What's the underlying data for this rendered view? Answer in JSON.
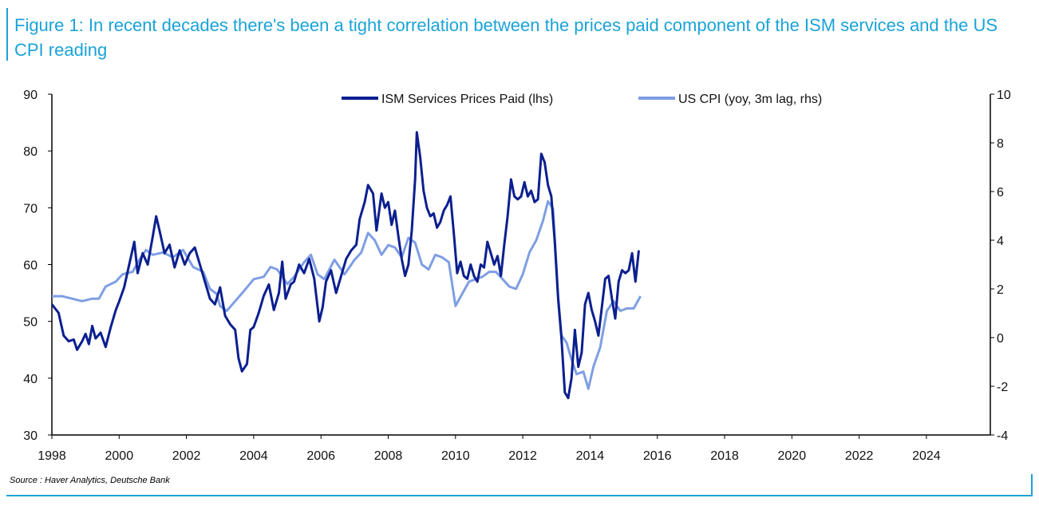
{
  "title": "Figure 1: In recent decades there's been a tight correlation between the prices paid component of the ISM services and the US CPI reading",
  "source": "Source : Haver Analytics, Deutsche Bank",
  "colors": {
    "title": "#1aa3d8",
    "ism": "#0c1f8f",
    "cpi": "#7f9ee3"
  },
  "chart_data": {
    "type": "line",
    "xlim": [
      1998,
      2025.9
    ],
    "x_ticks": [
      1998,
      2000,
      2002,
      2004,
      2006,
      2008,
      2010,
      2012,
      2014,
      2016,
      2018,
      2020,
      2022,
      2024
    ],
    "ylim_left": [
      30,
      90
    ],
    "y_ticks_left": [
      30,
      40,
      50,
      60,
      70,
      80,
      90
    ],
    "ylim_right": [
      -4,
      10
    ],
    "y_ticks_right": [
      -4,
      -2,
      0,
      2,
      4,
      6,
      8,
      10
    ],
    "legend_position": "top-center",
    "series": [
      {
        "name": "ISM Services Prices Paid (lhs)",
        "axis": "left",
        "points": [
          [
            1998.0,
            53.0
          ],
          [
            1998.2,
            51.5
          ],
          [
            1998.35,
            47.5
          ],
          [
            1998.5,
            46.5
          ],
          [
            1998.65,
            46.8
          ],
          [
            1998.75,
            45.0
          ],
          [
            1998.9,
            46.5
          ],
          [
            1999.0,
            47.8
          ],
          [
            1999.1,
            46.0
          ],
          [
            1999.2,
            49.2
          ],
          [
            1999.3,
            47.0
          ],
          [
            1999.45,
            48.0
          ],
          [
            1999.6,
            45.5
          ],
          [
            1999.75,
            49.0
          ],
          [
            1999.9,
            52.0
          ],
          [
            2000.0,
            53.5
          ],
          [
            2000.15,
            56.0
          ],
          [
            2000.3,
            60.0
          ],
          [
            2000.45,
            64.0
          ],
          [
            2000.55,
            58.5
          ],
          [
            2000.7,
            62.0
          ],
          [
            2000.85,
            60.0
          ],
          [
            2001.0,
            65.0
          ],
          [
            2001.1,
            68.5
          ],
          [
            2001.2,
            66.0
          ],
          [
            2001.35,
            62.0
          ],
          [
            2001.5,
            63.5
          ],
          [
            2001.65,
            59.5
          ],
          [
            2001.8,
            62.5
          ],
          [
            2001.95,
            60.0
          ],
          [
            2002.1,
            62.0
          ],
          [
            2002.25,
            63.0
          ],
          [
            2002.4,
            60.0
          ],
          [
            2002.55,
            57.0
          ],
          [
            2002.7,
            54.0
          ],
          [
            2002.85,
            53.0
          ],
          [
            2003.0,
            56.0
          ],
          [
            2003.15,
            51.0
          ],
          [
            2003.3,
            49.5
          ],
          [
            2003.45,
            48.5
          ],
          [
            2003.55,
            43.5
          ],
          [
            2003.65,
            41.2
          ],
          [
            2003.8,
            42.5
          ],
          [
            2003.9,
            48.5
          ],
          [
            2004.0,
            49.0
          ],
          [
            2004.15,
            51.5
          ],
          [
            2004.3,
            54.5
          ],
          [
            2004.45,
            56.5
          ],
          [
            2004.6,
            52.0
          ],
          [
            2004.75,
            55.0
          ],
          [
            2004.85,
            60.5
          ],
          [
            2004.95,
            54.0
          ],
          [
            2005.1,
            56.5
          ],
          [
            2005.2,
            57.0
          ],
          [
            2005.35,
            60.0
          ],
          [
            2005.5,
            58.5
          ],
          [
            2005.65,
            61.0
          ],
          [
            2005.8,
            57.5
          ],
          [
            2005.95,
            50.0
          ],
          [
            2006.05,
            52.5
          ],
          [
            2006.15,
            57.0
          ],
          [
            2006.3,
            59.0
          ],
          [
            2006.45,
            55.0
          ],
          [
            2006.6,
            58.0
          ],
          [
            2006.75,
            61.0
          ],
          [
            2006.9,
            62.5
          ],
          [
            2007.05,
            63.5
          ],
          [
            2007.15,
            68.0
          ],
          [
            2007.3,
            71.0
          ],
          [
            2007.4,
            74.0
          ],
          [
            2007.55,
            72.5
          ],
          [
            2007.65,
            66.0
          ],
          [
            2007.8,
            72.5
          ],
          [
            2007.9,
            70.0
          ],
          [
            2008.0,
            71.0
          ],
          [
            2008.1,
            67.0
          ],
          [
            2008.2,
            69.5
          ],
          [
            2008.3,
            65.0
          ],
          [
            2008.4,
            61.0
          ],
          [
            2008.5,
            58.0
          ],
          [
            2008.6,
            60.0
          ],
          [
            2008.7,
            66.0
          ],
          [
            2008.8,
            75.0
          ],
          [
            2008.85,
            83.3
          ],
          [
            2008.95,
            79.0
          ],
          [
            2009.05,
            73.0
          ],
          [
            2009.15,
            70.0
          ],
          [
            2009.25,
            68.5
          ],
          [
            2009.35,
            69.0
          ],
          [
            2009.45,
            66.5
          ],
          [
            2009.55,
            67.5
          ],
          [
            2009.65,
            69.5
          ],
          [
            2009.75,
            70.5
          ],
          [
            2009.85,
            72.0
          ],
          [
            2009.95,
            65.5
          ],
          [
            2010.05,
            58.5
          ],
          [
            2010.15,
            60.5
          ],
          [
            2010.25,
            58.0
          ],
          [
            2010.35,
            57.5
          ],
          [
            2010.45,
            60.0
          ],
          [
            2010.55,
            58.0
          ],
          [
            2010.65,
            57.0
          ],
          [
            2010.75,
            60.0
          ],
          [
            2010.85,
            59.5
          ],
          [
            2010.95,
            64.0
          ],
          [
            2011.05,
            62.0
          ],
          [
            2011.15,
            60.0
          ],
          [
            2011.25,
            61.5
          ],
          [
            2011.35,
            58.0
          ],
          [
            2011.45,
            63.5
          ],
          [
            2011.55,
            68.5
          ],
          [
            2011.65,
            75.0
          ],
          [
            2011.75,
            72.0
          ],
          [
            2011.85,
            71.5
          ],
          [
            2011.95,
            72.0
          ],
          [
            2012.05,
            74.5
          ],
          [
            2012.15,
            72.0
          ],
          [
            2012.25,
            73.0
          ],
          [
            2012.35,
            71.0
          ],
          [
            2012.45,
            71.5
          ],
          [
            2012.55,
            79.5
          ],
          [
            2012.65,
            78.0
          ],
          [
            2012.75,
            74.0
          ],
          [
            2012.85,
            72.0
          ],
          [
            2012.95,
            64.0
          ],
          [
            2013.05,
            54.0
          ],
          [
            2013.15,
            47.0
          ],
          [
            2013.25,
            37.5
          ],
          [
            2013.35,
            36.5
          ],
          [
            2013.45,
            40.0
          ],
          [
            2013.55,
            48.5
          ],
          [
            2013.65,
            42.0
          ],
          [
            2013.75,
            44.5
          ],
          [
            2013.85,
            53.0
          ],
          [
            2013.95,
            55.0
          ],
          [
            2014.05,
            52.0
          ],
          [
            2014.15,
            50.0
          ],
          [
            2014.25,
            47.5
          ],
          [
            2014.35,
            52.5
          ],
          [
            2014.45,
            57.5
          ],
          [
            2014.55,
            58.0
          ],
          [
            2014.65,
            54.0
          ],
          [
            2014.75,
            50.5
          ],
          [
            2014.85,
            57.0
          ],
          [
            2014.95,
            59.0
          ],
          [
            2015.05,
            58.5
          ],
          [
            2015.15,
            59.0
          ],
          [
            2015.25,
            62.0
          ],
          [
            2015.35,
            57.0
          ],
          [
            2015.45,
            62.5
          ]
        ]
      },
      {
        "name": "US CPI (yoy, 3m lag, rhs)",
        "axis": "right",
        "points": [
          [
            1998.0,
            1.7
          ],
          [
            1998.3,
            1.7
          ],
          [
            1998.6,
            1.6
          ],
          [
            1998.9,
            1.5
          ],
          [
            1999.2,
            1.6
          ],
          [
            1999.4,
            1.6
          ],
          [
            1999.6,
            2.1
          ],
          [
            1999.9,
            2.3
          ],
          [
            2000.1,
            2.6
          ],
          [
            2000.4,
            2.7
          ],
          [
            2000.6,
            3.2
          ],
          [
            2000.8,
            3.6
          ],
          [
            2001.0,
            3.4
          ],
          [
            2001.3,
            3.5
          ],
          [
            2001.6,
            3.3
          ],
          [
            2001.9,
            3.6
          ],
          [
            2002.2,
            2.9
          ],
          [
            2002.5,
            2.7
          ],
          [
            2002.7,
            2.0
          ],
          [
            2002.9,
            1.8
          ],
          [
            2003.0,
            1.3
          ],
          [
            2003.2,
            1.1
          ],
          [
            2003.45,
            1.5
          ],
          [
            2003.7,
            1.9
          ],
          [
            2004.0,
            2.4
          ],
          [
            2004.3,
            2.5
          ],
          [
            2004.5,
            2.9
          ],
          [
            2004.7,
            2.8
          ],
          [
            2005.0,
            2.2
          ],
          [
            2005.2,
            2.5
          ],
          [
            2005.5,
            3.1
          ],
          [
            2005.7,
            3.4
          ],
          [
            2005.9,
            2.6
          ],
          [
            2006.1,
            2.4
          ],
          [
            2006.4,
            3.2
          ],
          [
            2006.7,
            2.6
          ],
          [
            2007.0,
            3.2
          ],
          [
            2007.2,
            3.5
          ],
          [
            2007.4,
            4.3
          ],
          [
            2007.6,
            4.0
          ],
          [
            2007.8,
            3.4
          ],
          [
            2008.0,
            3.8
          ],
          [
            2008.2,
            3.7
          ],
          [
            2008.4,
            3.3
          ],
          [
            2008.6,
            4.1
          ],
          [
            2008.8,
            3.9
          ],
          [
            2009.0,
            3.0
          ],
          [
            2009.2,
            2.8
          ],
          [
            2009.4,
            3.4
          ],
          [
            2009.6,
            3.3
          ],
          [
            2009.8,
            3.1
          ],
          [
            2010.0,
            1.3
          ],
          [
            2010.2,
            1.8
          ],
          [
            2010.4,
            2.3
          ],
          [
            2010.6,
            2.4
          ],
          [
            2010.8,
            2.5
          ],
          [
            2011.0,
            2.7
          ],
          [
            2011.2,
            2.7
          ],
          [
            2011.4,
            2.4
          ],
          [
            2011.6,
            2.1
          ],
          [
            2011.8,
            2.0
          ],
          [
            2012.0,
            2.6
          ],
          [
            2012.2,
            3.5
          ],
          [
            2012.4,
            4.0
          ],
          [
            2012.6,
            4.8
          ],
          [
            2012.75,
            5.6
          ],
          [
            2012.9,
            5.3
          ],
          [
            2013.05,
            1.7
          ],
          [
            2013.15,
            0.1
          ],
          [
            2013.3,
            -0.2
          ],
          [
            2013.45,
            -0.9
          ],
          [
            2013.6,
            -1.5
          ],
          [
            2013.8,
            -1.4
          ],
          [
            2013.95,
            -2.1
          ],
          [
            2014.1,
            -1.2
          ],
          [
            2014.3,
            -0.4
          ],
          [
            2014.5,
            1.1
          ],
          [
            2014.7,
            1.5
          ],
          [
            2014.9,
            1.1
          ],
          [
            2015.1,
            1.2
          ],
          [
            2015.3,
            1.2
          ],
          [
            2015.5,
            1.7
          ]
        ]
      }
    ]
  },
  "legend": {
    "ism_label": "ISM Services Prices Paid (lhs)",
    "cpi_label": "US CPI (yoy, 3m lag, rhs)"
  }
}
